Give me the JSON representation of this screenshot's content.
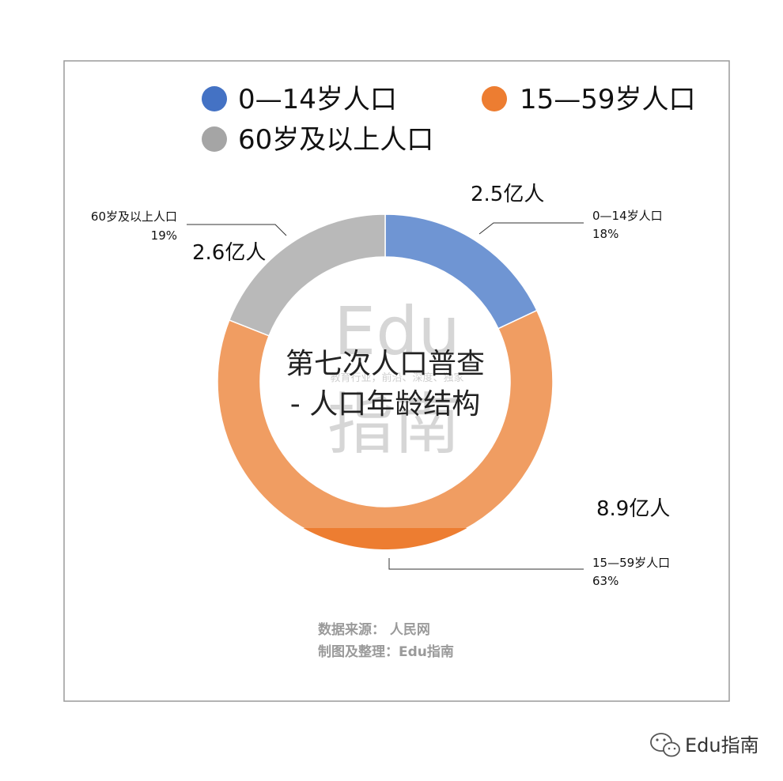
{
  "chart_data": {
    "type": "pie",
    "donut": true,
    "title": "第七次人口普查- 人口年龄结构",
    "title_lines": [
      "第七次人口普查",
      "- 人口年龄结构"
    ],
    "legend_position": "top",
    "slices": [
      {
        "name": "0—14岁人口",
        "percent": "18%",
        "value": 18,
        "amount_label": "2.5亿人",
        "color": "#6f95d3"
      },
      {
        "name": "15—59岁人口",
        "percent": "63%",
        "value": 63,
        "amount_label": "8.9亿人",
        "color": "#f09d62"
      },
      {
        "name": "60岁及以上人口",
        "percent": "19%",
        "value": 19,
        "amount_label": "2.6亿人",
        "color": "#b9b9b9"
      }
    ],
    "legend": [
      {
        "label": "0—14岁人口",
        "color": "#4472c4"
      },
      {
        "label": "15—59岁人口",
        "color": "#ed7d31"
      },
      {
        "label": "60岁及以上人口",
        "color": "#a5a5a5"
      }
    ],
    "source_lines": [
      "数据来源： 人民网",
      "制图及整理：Edu指南"
    ]
  },
  "watermark": {
    "big_top": "Edu",
    "tagline": "教育行业，前沿、深度、独家",
    "big_bottom": "指南"
  },
  "footer": {
    "brand": "Edu指南",
    "icon": "wechat-icon"
  }
}
